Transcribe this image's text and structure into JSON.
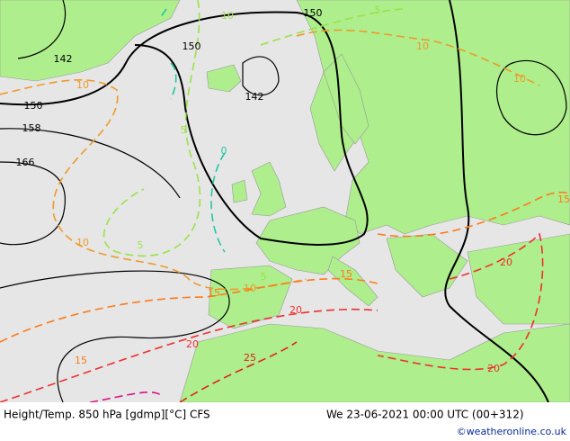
{
  "map": {
    "height_labels": [
      "150",
      "150",
      "142",
      "150",
      "142",
      "158",
      "166"
    ],
    "temperature_labels": [
      "10",
      "5",
      "10",
      "10",
      "10",
      "5",
      "0",
      "10",
      "5",
      "5",
      "10",
      "15",
      "15",
      "20",
      "20",
      "20",
      "15",
      "25",
      "20",
      "15"
    ]
  },
  "footer": {
    "title": "Height/Temp. 850 hPa [gdmp][°C] CFS",
    "datetime": "We 23-06-2021 00:00 UTC (00+312)",
    "copyright": "©weatheronline.co.uk"
  }
}
